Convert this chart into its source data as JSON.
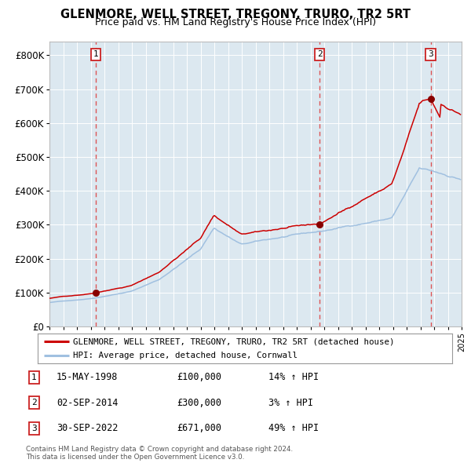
{
  "title": "GLENMORE, WELL STREET, TREGONY, TRURO, TR2 5RT",
  "subtitle": "Price paid vs. HM Land Registry's House Price Index (HPI)",
  "background_color": "#dce8f0",
  "plot_bg": "#dce8f0",
  "ylim": [
    0,
    840000
  ],
  "yticks": [
    0,
    100000,
    200000,
    300000,
    400000,
    500000,
    600000,
    700000,
    800000
  ],
  "ytick_labels": [
    "£0",
    "£100K",
    "£200K",
    "£300K",
    "£400K",
    "£500K",
    "£600K",
    "£700K",
    "£800K"
  ],
  "sale_dates_decimal": [
    1998.37,
    2014.67,
    2022.75
  ],
  "sale_prices": [
    100000,
    300000,
    671000
  ],
  "sale_labels": [
    "1",
    "2",
    "3"
  ],
  "legend_line1": "GLENMORE, WELL STREET, TREGONY, TRURO, TR2 5RT (detached house)",
  "legend_line2": "HPI: Average price, detached house, Cornwall",
  "table_entries": [
    {
      "num": "1",
      "date": "15-MAY-1998",
      "price": "£100,000",
      "hpi": "14% ↑ HPI"
    },
    {
      "num": "2",
      "date": "02-SEP-2014",
      "price": "£300,000",
      "hpi": "3% ↑ HPI"
    },
    {
      "num": "3",
      "date": "30-SEP-2022",
      "price": "£671,000",
      "hpi": "49% ↑ HPI"
    }
  ],
  "footer": "Contains HM Land Registry data © Crown copyright and database right 2024.\nThis data is licensed under the Open Government Licence v3.0.",
  "hpi_line_color": "#a0c0e0",
  "price_line_color": "#cc0000",
  "sale_marker_color": "#880000",
  "dashed_line_color": "#dd4444",
  "x_start_year": 1995,
  "x_end_year": 2025
}
